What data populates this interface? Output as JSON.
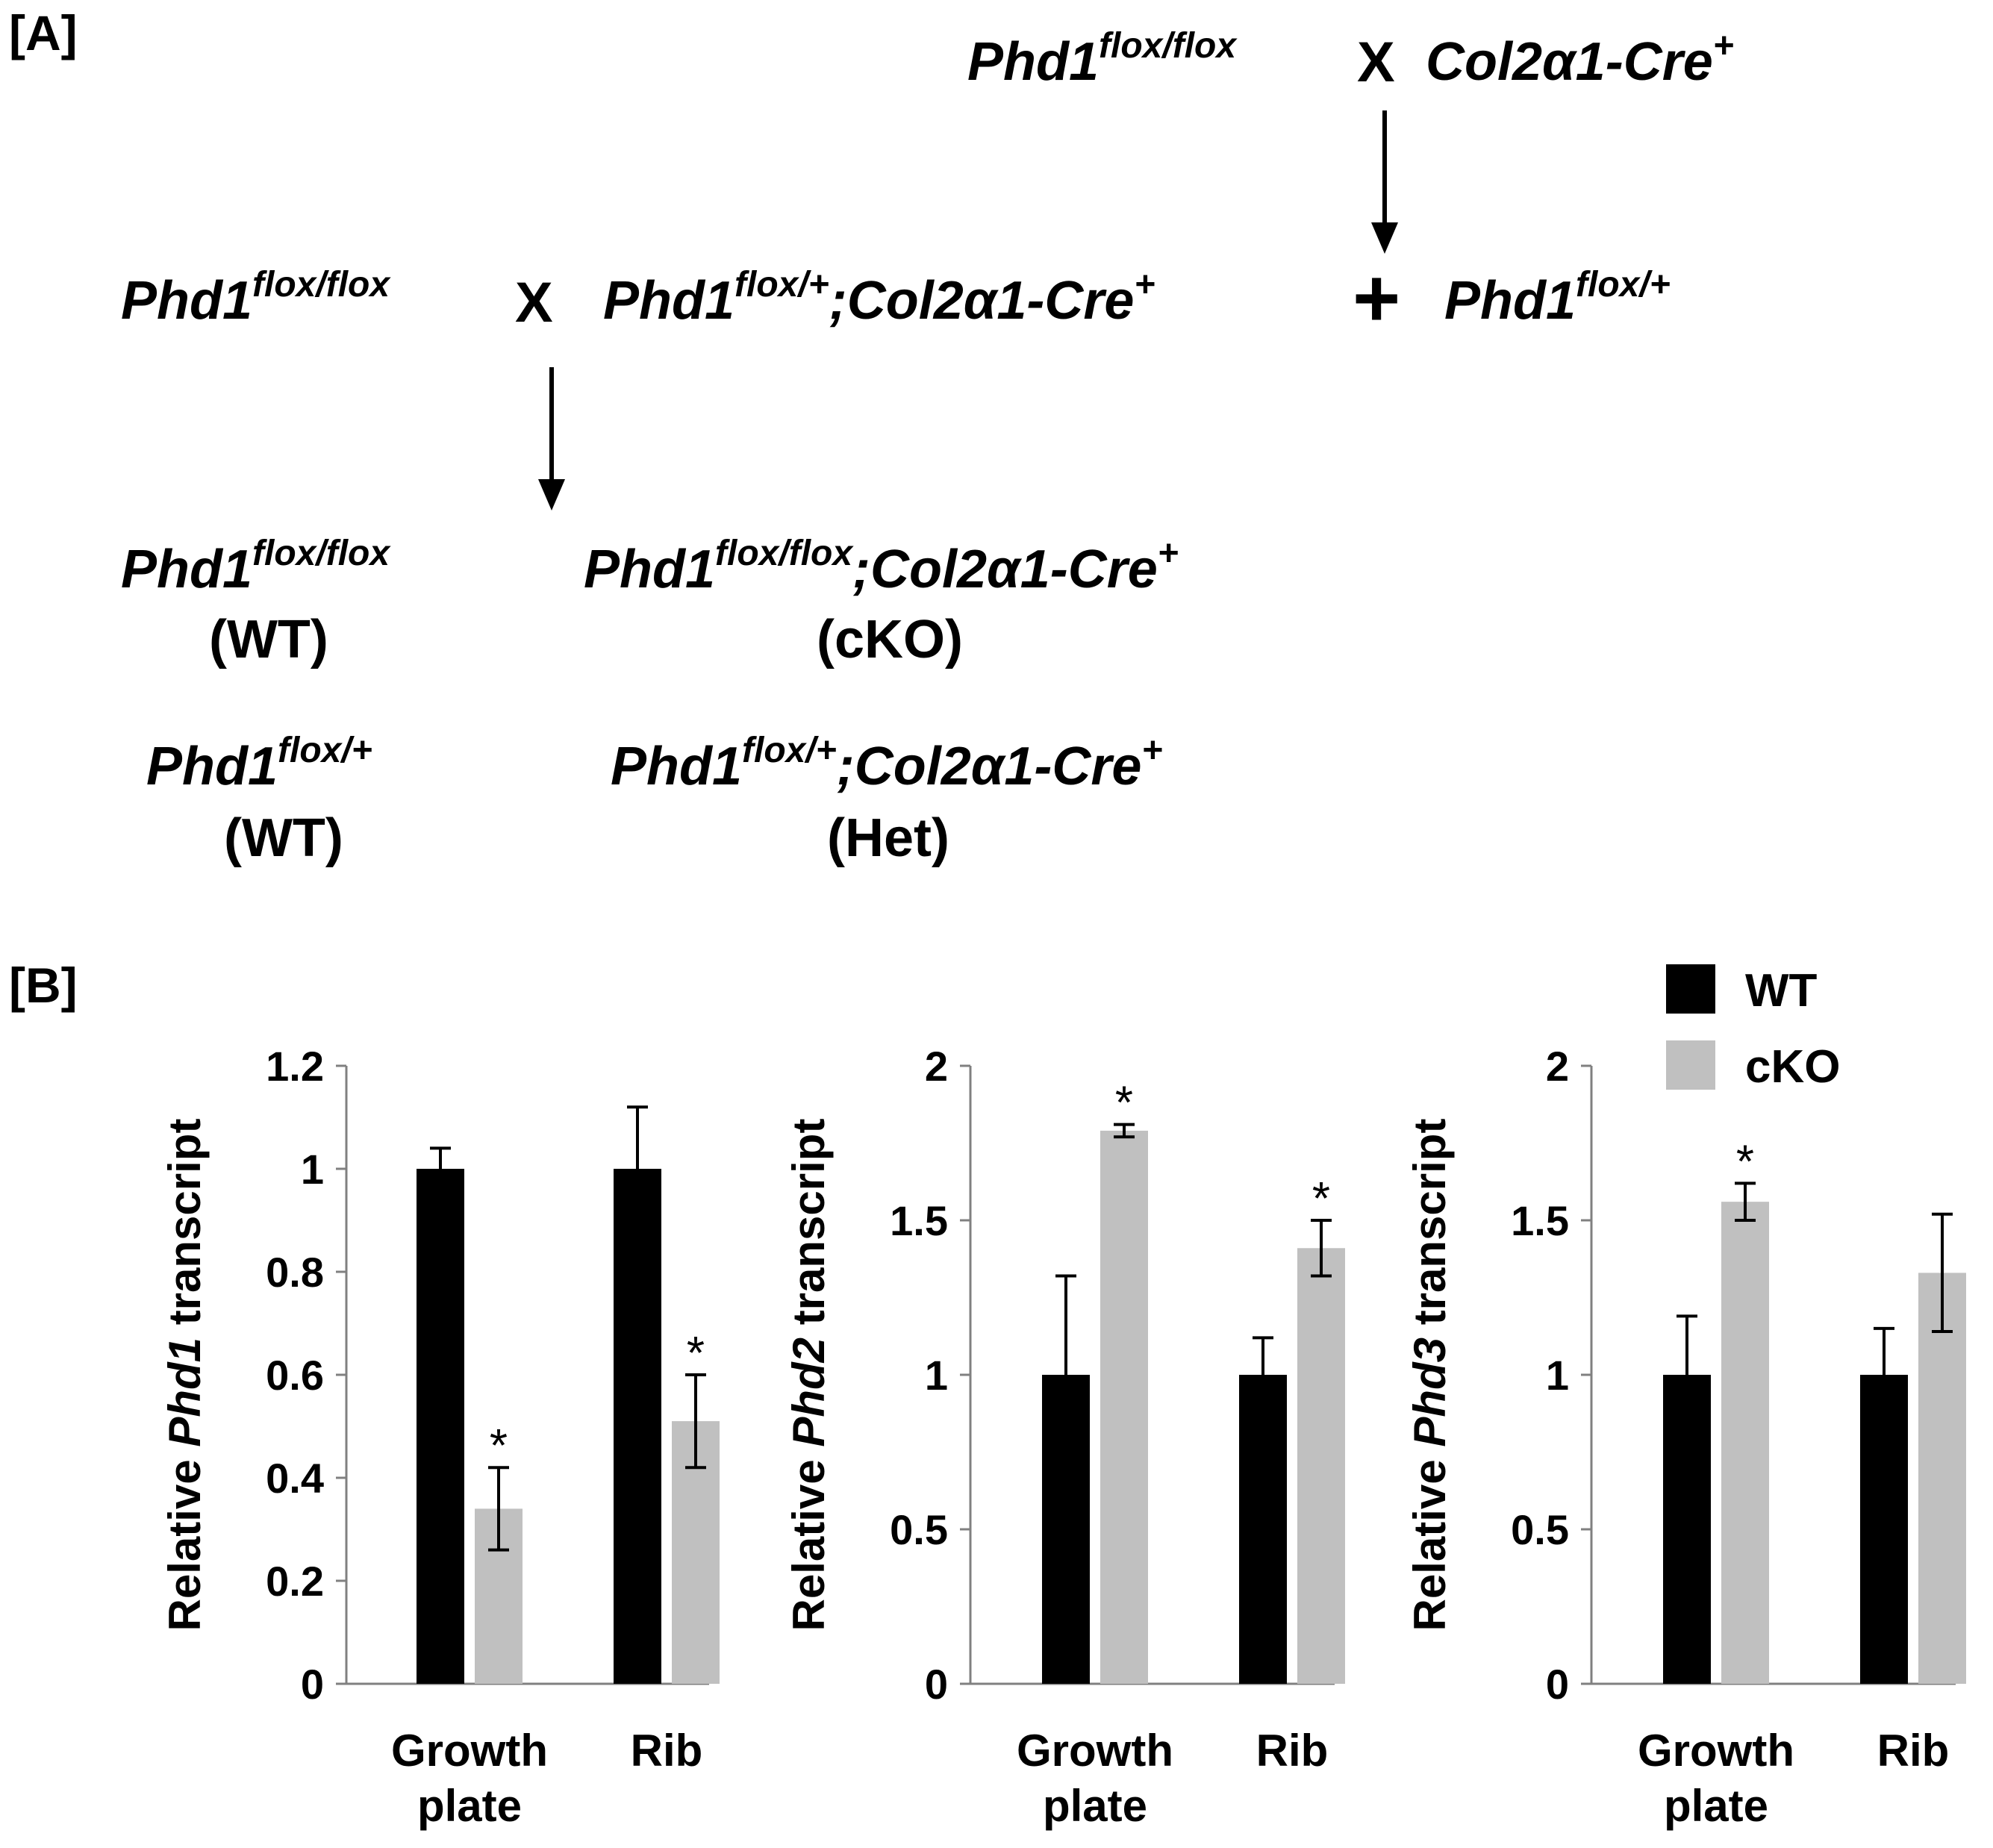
{
  "panel_a": {
    "label": "[A]",
    "top_parent1": {
      "base": "Phd1",
      "sup": "flox/flox"
    },
    "top_cross": "X",
    "top_parent2": {
      "base": "Col2α1-Cre",
      "sup": "+"
    },
    "mid_parent1": {
      "base": "Phd1",
      "sup": "flox/flox"
    },
    "mid_cross": "X",
    "mid_parent2": {
      "base": "Phd1",
      "sup": "flox/+",
      "base2": ";Col2α1-Cre",
      "sup2": "+"
    },
    "mid_plus": "+",
    "mid_parent3": {
      "base": "Phd1",
      "sup": "flox/+"
    },
    "offspring": [
      {
        "base": "Phd1",
        "sup": "flox/flox",
        "base2": "",
        "sup2": "",
        "name": "(WT)"
      },
      {
        "base": "Phd1",
        "sup": "flox/flox",
        "base2": ";Col2α1-Cre",
        "sup2": "+",
        "name": "(cKO)"
      },
      {
        "base": "Phd1",
        "sup": "flox/+",
        "base2": "",
        "sup2": "",
        "name": "(WT)"
      },
      {
        "base": "Phd1",
        "sup": "flox/+",
        "base2": ";Col2α1-Cre",
        "sup2": "+",
        "name": "(Het)"
      }
    ]
  },
  "panel_b": {
    "label": "[B]",
    "legend": [
      {
        "label": "WT",
        "color": "#000000"
      },
      {
        "label": "cKO",
        "color": "#c0c0c0"
      }
    ]
  },
  "chart_data": [
    {
      "type": "bar",
      "title": "",
      "ylabel": {
        "pre": "Relative ",
        "gene": "Phd1",
        "post": " transcript"
      },
      "categories": [
        [
          "Growth",
          "plate"
        ],
        [
          "Rib"
        ]
      ],
      "ylim": [
        0,
        1.2
      ],
      "yticks": [
        0,
        0.2,
        0.4,
        0.6,
        0.8,
        1,
        1.2
      ],
      "ytick_labels": [
        "0",
        "0.2",
        "0.4",
        "0.6",
        "0.8",
        "1",
        "1.2"
      ],
      "series": [
        {
          "name": "WT",
          "color": "#000000",
          "values": [
            1.0,
            1.0
          ],
          "errors": [
            0.04,
            0.12
          ],
          "significant": [
            false,
            false
          ]
        },
        {
          "name": "cKO",
          "color": "#c0c0c0",
          "values": [
            0.34,
            0.51
          ],
          "errors": [
            0.08,
            0.09
          ],
          "significant": [
            true,
            true
          ]
        }
      ],
      "significance_marker": "*"
    },
    {
      "type": "bar",
      "title": "",
      "ylabel": {
        "pre": "Relative ",
        "gene": "Phd2",
        "post": " transcript"
      },
      "categories": [
        [
          "Growth",
          "plate"
        ],
        [
          "Rib"
        ]
      ],
      "ylim": [
        0,
        2
      ],
      "yticks": [
        0,
        0.5,
        1,
        1.5,
        2
      ],
      "ytick_labels": [
        "0",
        "0.5",
        "1",
        "1.5",
        "2"
      ],
      "series": [
        {
          "name": "WT",
          "color": "#000000",
          "values": [
            1.0,
            1.0
          ],
          "errors": [
            0.32,
            0.12
          ],
          "significant": [
            false,
            false
          ]
        },
        {
          "name": "cKO",
          "color": "#c0c0c0",
          "values": [
            1.79,
            1.41
          ],
          "errors": [
            0.02,
            0.09
          ],
          "significant": [
            true,
            true
          ]
        }
      ],
      "significance_marker": "*"
    },
    {
      "type": "bar",
      "title": "",
      "ylabel": {
        "pre": "Relative ",
        "gene": "Phd3",
        "post": " transcript"
      },
      "categories": [
        [
          "Growth",
          "plate"
        ],
        [
          "Rib"
        ]
      ],
      "ylim": [
        0,
        2
      ],
      "yticks": [
        0,
        0.5,
        1,
        1.5,
        2
      ],
      "ytick_labels": [
        "0",
        "0.5",
        "1",
        "1.5",
        "2"
      ],
      "series": [
        {
          "name": "WT",
          "color": "#000000",
          "values": [
            1.0,
            1.0
          ],
          "errors": [
            0.19,
            0.15
          ],
          "significant": [
            false,
            false
          ]
        },
        {
          "name": "cKO",
          "color": "#c0c0c0",
          "values": [
            1.56,
            1.33
          ],
          "errors": [
            0.06,
            0.19
          ],
          "significant": [
            true,
            false
          ]
        }
      ],
      "significance_marker": "*"
    }
  ]
}
